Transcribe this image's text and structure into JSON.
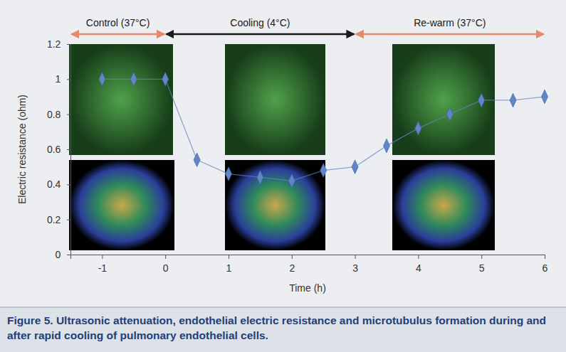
{
  "chart_data": {
    "type": "line",
    "x": [
      -1,
      -0.5,
      0,
      0.5,
      1,
      1.5,
      2,
      2.5,
      3,
      3.5,
      4,
      4.5,
      5,
      5.5,
      6
    ],
    "values": [
      1,
      1,
      1,
      0.54,
      0.46,
      0.44,
      0.42,
      0.48,
      0.5,
      0.62,
      0.72,
      0.8,
      0.88,
      0.88,
      0.9
    ],
    "color": "#6285c6",
    "marker": "diamond",
    "x_label": "Time (h)",
    "y_label": "Electric resistance (ohm)",
    "xlim": [
      -1.5,
      6
    ],
    "xticks": [
      -1,
      0,
      1,
      2,
      3,
      4,
      5,
      6
    ],
    "ylim": [
      0,
      1.2
    ],
    "yticks": [
      0,
      0.2,
      0.4,
      0.6,
      0.8,
      1,
      1.2
    ],
    "grid": false,
    "phases": [
      {
        "label": "Control (37°C)",
        "start": -1.5,
        "end": 0,
        "color": "#e58a6c"
      },
      {
        "label": "Cooling (4°C)",
        "start": 0,
        "end": 3,
        "color": "#1a1a1a"
      },
      {
        "label": "Re-warm (37°C)",
        "start": 3,
        "end": 6,
        "color": "#e58a6c"
      }
    ],
    "caption": "Figure 5. Ultrasonic attenuation, endothelial electric resistance and microtubulus formation during and after rapid cooling of pulmonary endothelial cells."
  }
}
